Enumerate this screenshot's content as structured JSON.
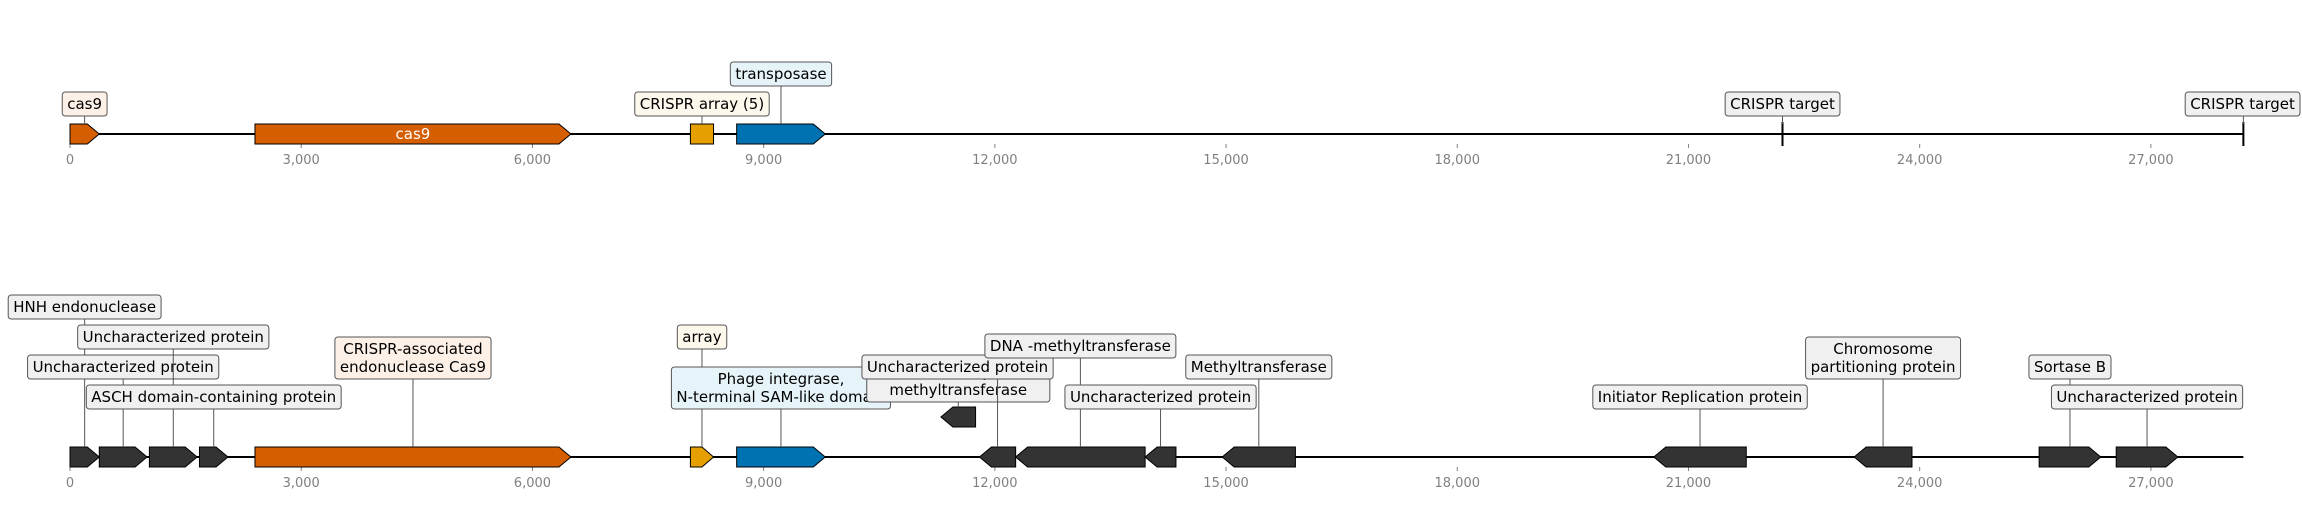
{
  "colors": {
    "cas": "#d55e00",
    "array": "#e69f00",
    "transposase": "#0072b2",
    "other": "#333333",
    "label_bg_cas": "#fdf1e7",
    "label_bg_array": "#fdf8ec",
    "label_bg_transposase": "#e6f4fa",
    "label_bg_other": "#f0f0f0",
    "tick_text": "#808080"
  },
  "tracks": [
    {
      "axis_max": 28200,
      "ticks": [
        "0",
        "3,000",
        "6,000",
        "9,000",
        "12,000",
        "15,000",
        "18,000",
        "21,000",
        "24,000",
        "27,000"
      ],
      "features": [
        {
          "start": 0,
          "end": 380,
          "strand": 1,
          "kind": "cas",
          "label": "cas9",
          "label_level": 0
        },
        {
          "start": 2400,
          "end": 6500,
          "strand": 1,
          "kind": "cas",
          "label": "cas9",
          "label_inside": true
        },
        {
          "start": 8050,
          "end": 8350,
          "strand": 0,
          "kind": "array",
          "label": "CRISPR array (5)",
          "label_level": 0
        },
        {
          "start": 8650,
          "end": 9800,
          "strand": 1,
          "kind": "transposase",
          "label": "transposase",
          "label_level": 1
        },
        {
          "start": 22220,
          "end": 22220,
          "strand": 0,
          "kind": "target",
          "label": "CRISPR target",
          "label_level": 0
        },
        {
          "start": 28200,
          "end": 28200,
          "strand": 0,
          "kind": "target",
          "label": "CRISPR target",
          "label_level": 0
        }
      ]
    },
    {
      "axis_max": 28200,
      "ticks": [
        "0",
        "3,000",
        "6,000",
        "9,000",
        "12,000",
        "15,000",
        "18,000",
        "21,000",
        "24,000",
        "27,000"
      ],
      "features": [
        {
          "start": 0,
          "end": 380,
          "strand": 1,
          "kind": "other",
          "label": "HNH endonuclease",
          "label_level": 4
        },
        {
          "start": 380,
          "end": 1000,
          "strand": 1,
          "kind": "other",
          "label": "Uncharacterized protein",
          "label_level": 2
        },
        {
          "start": 1030,
          "end": 1650,
          "strand": 1,
          "kind": "other",
          "label": "Uncharacterized protein",
          "label_level": 3
        },
        {
          "start": 1680,
          "end": 2050,
          "strand": 1,
          "kind": "other",
          "label": "ASCH domain-containing protein",
          "label_level": 1
        },
        {
          "start": 2400,
          "end": 6500,
          "strand": 1,
          "kind": "cas",
          "label": "CRISPR-associated\nendonuclease Cas9",
          "label_level": 2
        },
        {
          "start": 8050,
          "end": 8350,
          "strand": 1,
          "kind": "array",
          "label": "array",
          "label_level": 3
        },
        {
          "start": 8650,
          "end": 9800,
          "strand": 1,
          "kind": "transposase",
          "label": "Phage integrase,\nN-terminal SAM-like domain",
          "label_level": 1
        },
        {
          "start": 11300,
          "end": 11750,
          "strand": -1,
          "kind": "other",
          "label_level": 0,
          "raised": true,
          "label": "Class I SAM-dependent\nmethyltransferase",
          "label_dy": 3
        },
        {
          "start": 11800,
          "end": 12270,
          "strand": -1,
          "kind": "other",
          "label": "Uncharacterized protein",
          "label_level": 2,
          "label_dx": -40
        },
        {
          "start": 12270,
          "end": 13950,
          "strand": -1,
          "kind": "other",
          "label": "DNA -methyltransferase",
          "label_level": 2.7
        },
        {
          "start": 13950,
          "end": 14350,
          "strand": -1,
          "kind": "other",
          "label": "Uncharacterized protein",
          "label_level": 1
        },
        {
          "start": 14950,
          "end": 15900,
          "strand": -1,
          "kind": "other",
          "label": "Methyltransferase",
          "label_level": 2
        },
        {
          "start": 20550,
          "end": 21750,
          "strand": -1,
          "kind": "other",
          "label": "Initiator Replication protein",
          "label_level": 1
        },
        {
          "start": 23150,
          "end": 23900,
          "strand": -1,
          "kind": "other",
          "label": "Chromosome\npartitioning protein",
          "label_level": 2
        },
        {
          "start": 25550,
          "end": 26350,
          "strand": 1,
          "kind": "other",
          "label": "Sortase B",
          "label_level": 2
        },
        {
          "start": 26550,
          "end": 27350,
          "strand": 1,
          "kind": "other",
          "label": "Uncharacterized protein",
          "label_level": 1
        }
      ]
    }
  ]
}
